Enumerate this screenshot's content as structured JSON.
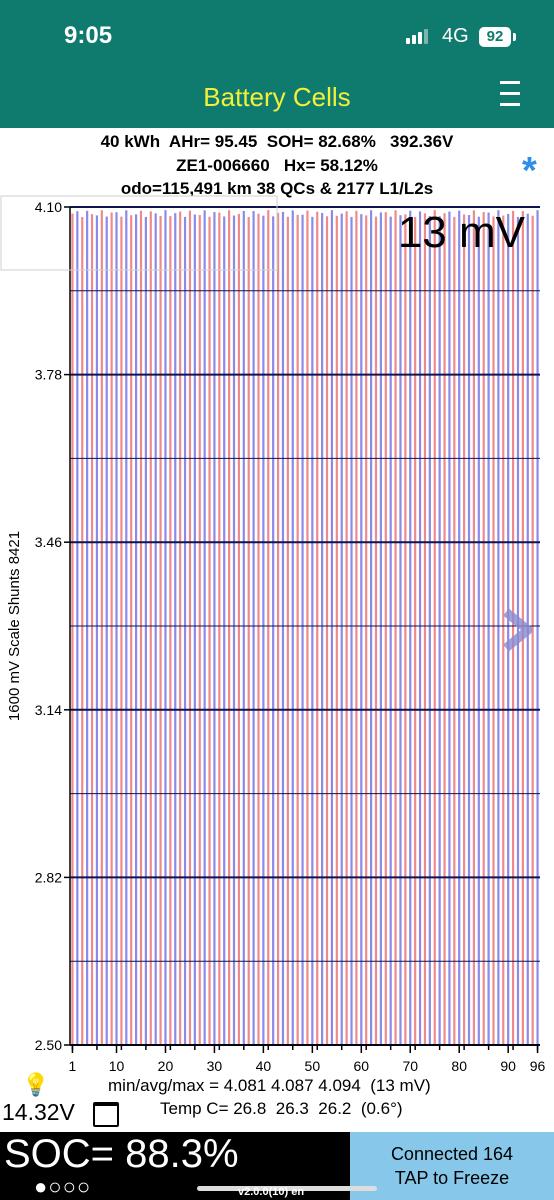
{
  "status_bar": {
    "time": "9:05",
    "network": "4G",
    "battery": "92"
  },
  "header": {
    "title": "Battery Cells"
  },
  "info": {
    "line1": "40 kWh  AHr= 95.45  SOH= 82.68%   392.36V",
    "line2": "ZE1-006660   Hx= 58.12%",
    "line3": "odo=115,491 km 38 QCs & 2177 L1/L2s"
  },
  "footer": {
    "minavgmax": "min/avg/max = 4.081 4.087 4.094  (13 mV)",
    "temp": "Temp C= 26.8  26.3  26.2  (0.6°)",
    "aux_voltage": "14.32V",
    "soc": "SOC= 88.3%",
    "page_dots": "●○○○",
    "connected": "Connected 164",
    "tap": "TAP to Freeze",
    "version": "v2.0.0(10) en"
  },
  "colors": {
    "header_bg": "#0f7b6e",
    "title": "#f4f03a",
    "odd_cell": "#f08a8a",
    "even_cell": "#8a8ae8",
    "star": "#2f8fe8",
    "bottom_right_bg": "#87c8ea"
  },
  "icons": [
    "signal-icon",
    "battery-icon",
    "menu-icon",
    "star-icon",
    "bulb-icon",
    "calendar-icon",
    "chevron-right-icon"
  ],
  "chart_data": {
    "type": "bar",
    "y_axis_label": "1600 mV Scale   Shunts 8421",
    "spread_label": "13 mV",
    "ylim": [
      2.5,
      4.1
    ],
    "y_ticks": [
      "4.10",
      "3.78",
      "3.46",
      "3.14",
      "2.82",
      "2.50"
    ],
    "x_ticks": [
      "1",
      "10",
      "20",
      "30",
      "40",
      "50",
      "60",
      "70",
      "80",
      "90",
      "96"
    ],
    "cell_count": 96,
    "min": 4.081,
    "avg": 4.087,
    "max": 4.094
  }
}
